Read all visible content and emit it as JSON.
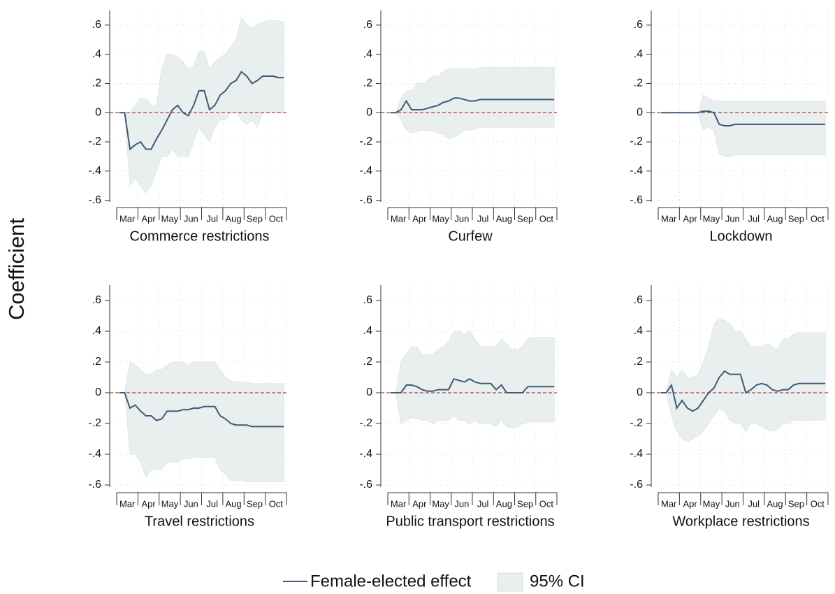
{
  "ylabel": "Coefficient",
  "chart_data": [
    {
      "type": "line",
      "title": "Commerce restrictions",
      "categories": [
        null,
        null,
        "Mar",
        null,
        null,
        null,
        "Apr",
        null,
        null,
        null,
        "May",
        null,
        null,
        null,
        "Jun",
        null,
        null,
        null,
        "Jul",
        null,
        null,
        null,
        "Aug",
        null,
        null,
        null,
        "Sep",
        null,
        null,
        null,
        "Oct",
        null
      ],
      "series": [
        {
          "name": "Female-elected effect",
          "color": "#3e5a78",
          "values": [
            0,
            0,
            -0.25,
            -0.22,
            -0.2,
            -0.25,
            -0.25,
            -0.18,
            -0.12,
            -0.05,
            0.02,
            0.05,
            0.0,
            -0.02,
            0.05,
            0.15,
            0.15,
            0.02,
            0.05,
            0.12,
            0.15,
            0.2,
            0.22,
            0.28,
            0.25,
            0.2,
            0.22,
            0.25,
            0.25,
            0.25,
            0.24,
            0.24
          ]
        },
        {
          "name": "95% CI",
          "color": "#e9eeee",
          "upper": [
            0,
            0,
            0,
            0.05,
            0.1,
            0.1,
            0.05,
            0.05,
            0.3,
            0.4,
            0.4,
            0.38,
            0.35,
            0.3,
            0.32,
            0.42,
            0.42,
            0.3,
            0.35,
            0.38,
            0.4,
            0.45,
            0.5,
            0.65,
            0.6,
            0.58,
            0.6,
            0.62,
            0.63,
            0.63,
            0.63,
            0.62
          ],
          "lower": [
            0,
            0,
            -0.5,
            -0.45,
            -0.5,
            -0.55,
            -0.5,
            -0.4,
            -0.3,
            -0.3,
            -0.25,
            -0.3,
            -0.3,
            -0.3,
            -0.2,
            -0.1,
            -0.15,
            -0.2,
            -0.1,
            -0.05,
            -0.05,
            0.0,
            0.0,
            -0.05,
            -0.08,
            -0.05,
            -0.1,
            0.0,
            0.0,
            0.0,
            0.0,
            0.0
          ]
        }
      ],
      "ylim": [
        -0.65,
        0.7
      ],
      "yticks": [
        {
          "value": 0.6,
          "label": ".6"
        },
        {
          "value": 0.4,
          "label": ".4"
        },
        {
          "value": 0.2,
          "label": ".2"
        },
        0,
        {
          "value": -0.2,
          "label": "-.2"
        },
        {
          "value": -0.4,
          "label": "-.4"
        },
        {
          "value": -0.6,
          "label": "-.6"
        }
      ],
      "grid": true
    },
    {
      "type": "line",
      "title": "Curfew",
      "categories": [
        null,
        null,
        "Mar",
        null,
        null,
        null,
        "Apr",
        null,
        null,
        null,
        "May",
        null,
        null,
        null,
        "Jun",
        null,
        null,
        null,
        "Jul",
        null,
        null,
        null,
        "Aug",
        null,
        null,
        null,
        "Sep",
        null,
        null,
        null,
        "Oct",
        null
      ],
      "series": [
        {
          "name": "Female-elected effect",
          "color": "#3e5a78",
          "values": [
            0,
            0,
            0.02,
            0.08,
            0.02,
            0.02,
            0.02,
            0.03,
            0.04,
            0.05,
            0.07,
            0.08,
            0.1,
            0.1,
            0.09,
            0.08,
            0.08,
            0.09,
            0.09,
            0.09,
            0.09,
            0.09,
            0.09,
            0.09,
            0.09,
            0.09,
            0.09,
            0.09,
            0.09,
            0.09,
            0.09,
            0.09
          ]
        },
        {
          "name": "95% CI",
          "color": "#e9eeee",
          "upper": [
            0,
            0,
            0.1,
            0.15,
            0.15,
            0.2,
            0.2,
            0.22,
            0.25,
            0.25,
            0.28,
            0.3,
            0.3,
            0.3,
            0.3,
            0.3,
            0.3,
            0.31,
            0.31,
            0.31,
            0.31,
            0.31,
            0.31,
            0.31,
            0.31,
            0.31,
            0.31,
            0.31,
            0.31,
            0.31,
            0.31,
            0.31
          ],
          "lower": [
            0,
            0,
            -0.05,
            -0.12,
            -0.14,
            -0.13,
            -0.12,
            -0.12,
            -0.13,
            -0.14,
            -0.15,
            -0.18,
            -0.17,
            -0.15,
            -0.12,
            -0.12,
            -0.11,
            -0.1,
            -0.1,
            -0.1,
            -0.1,
            -0.1,
            -0.1,
            -0.1,
            -0.1,
            -0.1,
            -0.1,
            -0.1,
            -0.1,
            -0.1,
            -0.1,
            -0.1
          ]
        }
      ],
      "ylim": [
        -0.65,
        0.7
      ],
      "yticks": [
        {
          "value": 0.6,
          "label": ".6"
        },
        {
          "value": 0.4,
          "label": ".4"
        },
        {
          "value": 0.2,
          "label": ".2"
        },
        0,
        {
          "value": -0.2,
          "label": "-.2"
        },
        {
          "value": -0.4,
          "label": "-.4"
        },
        {
          "value": -0.6,
          "label": "-.6"
        }
      ],
      "grid": true
    },
    {
      "type": "line",
      "title": "Lockdown",
      "categories": [
        null,
        null,
        "Mar",
        null,
        null,
        null,
        "Apr",
        null,
        null,
        null,
        "May",
        null,
        null,
        null,
        "Jun",
        null,
        null,
        null,
        "Jul",
        null,
        null,
        null,
        "Aug",
        null,
        null,
        null,
        "Sep",
        null,
        null,
        null,
        "Oct",
        null
      ],
      "series": [
        {
          "name": "Female-elected effect",
          "color": "#3e5a78",
          "values": [
            0,
            0,
            0,
            0,
            0,
            0,
            0,
            0,
            0.01,
            0.01,
            0.0,
            -0.08,
            -0.09,
            -0.09,
            -0.08,
            -0.08,
            -0.08,
            -0.08,
            -0.08,
            -0.08,
            -0.08,
            -0.08,
            -0.08,
            -0.08,
            -0.08,
            -0.08,
            -0.08,
            -0.08,
            -0.08,
            -0.08,
            -0.08,
            -0.08
          ]
        },
        {
          "name": "95% CI",
          "color": "#e9eeee",
          "upper": [
            0,
            0,
            0,
            0,
            0,
            0,
            0,
            0,
            0.12,
            0.1,
            0.08,
            0.08,
            0.08,
            0.08,
            0.08,
            0.08,
            0.08,
            0.08,
            0.08,
            0.08,
            0.08,
            0.08,
            0.08,
            0.08,
            0.08,
            0.08,
            0.08,
            0.08,
            0.08,
            0.08,
            0.08,
            0.08
          ],
          "lower": [
            0,
            0,
            0,
            0,
            0,
            0,
            0,
            0,
            -0.12,
            -0.1,
            -0.12,
            -0.28,
            -0.3,
            -0.3,
            -0.29,
            -0.29,
            -0.29,
            -0.29,
            -0.29,
            -0.29,
            -0.29,
            -0.29,
            -0.29,
            -0.29,
            -0.29,
            -0.29,
            -0.29,
            -0.29,
            -0.29,
            -0.29,
            -0.29,
            -0.29
          ]
        }
      ],
      "ylim": [
        -0.65,
        0.7
      ],
      "yticks": [
        {
          "value": 0.6,
          "label": ".6"
        },
        {
          "value": 0.4,
          "label": ".4"
        },
        {
          "value": 0.2,
          "label": ".2"
        },
        0,
        {
          "value": -0.2,
          "label": "-.2"
        },
        {
          "value": -0.4,
          "label": "-.4"
        },
        {
          "value": -0.6,
          "label": "-.6"
        }
      ],
      "grid": true
    },
    {
      "type": "line",
      "title": "Travel restrictions",
      "categories": [
        null,
        null,
        "Mar",
        null,
        null,
        null,
        "Apr",
        null,
        null,
        null,
        "May",
        null,
        null,
        null,
        "Jun",
        null,
        null,
        null,
        "Jul",
        null,
        null,
        null,
        "Aug",
        null,
        null,
        null,
        "Sep",
        null,
        null,
        null,
        "Oct",
        null
      ],
      "series": [
        {
          "name": "Female-elected effect",
          "color": "#3e5a78",
          "values": [
            0,
            0,
            -0.1,
            -0.08,
            -0.12,
            -0.15,
            -0.15,
            -0.18,
            -0.17,
            -0.12,
            -0.12,
            -0.12,
            -0.11,
            -0.11,
            -0.1,
            -0.1,
            -0.09,
            -0.09,
            -0.09,
            -0.15,
            -0.17,
            -0.2,
            -0.21,
            -0.21,
            -0.21,
            -0.22,
            -0.22,
            -0.22,
            -0.22,
            -0.22,
            -0.22,
            -0.22
          ]
        },
        {
          "name": "95% CI",
          "color": "#e9eeee",
          "upper": [
            0,
            0,
            0.2,
            0.18,
            0.15,
            0.12,
            0.12,
            0.15,
            0.15,
            0.18,
            0.2,
            0.2,
            0.2,
            0.18,
            0.2,
            0.2,
            0.2,
            0.2,
            0.2,
            0.15,
            0.1,
            0.08,
            0.07,
            0.07,
            0.07,
            0.06,
            0.06,
            0.06,
            0.06,
            0.06,
            0.06,
            0.06
          ],
          "lower": [
            0,
            0,
            -0.4,
            -0.4,
            -0.45,
            -0.55,
            -0.5,
            -0.5,
            -0.5,
            -0.45,
            -0.45,
            -0.45,
            -0.43,
            -0.43,
            -0.42,
            -0.42,
            -0.42,
            -0.42,
            -0.42,
            -0.5,
            -0.53,
            -0.57,
            -0.57,
            -0.57,
            -0.58,
            -0.58,
            -0.58,
            -0.58,
            -0.58,
            -0.58,
            -0.58,
            -0.58
          ]
        }
      ],
      "ylim": [
        -0.65,
        0.7
      ],
      "yticks": [
        {
          "value": 0.6,
          "label": ".6"
        },
        {
          "value": 0.4,
          "label": ".4"
        },
        {
          "value": 0.2,
          "label": ".2"
        },
        0,
        {
          "value": -0.2,
          "label": "-.2"
        },
        {
          "value": -0.4,
          "label": "-.4"
        },
        {
          "value": -0.6,
          "label": "-.6"
        }
      ],
      "grid": true
    },
    {
      "type": "line",
      "title": "Public transport restrictions",
      "categories": [
        null,
        null,
        "Mar",
        null,
        null,
        null,
        "Apr",
        null,
        null,
        null,
        "May",
        null,
        null,
        null,
        "Jun",
        null,
        null,
        null,
        "Jul",
        null,
        null,
        null,
        "Aug",
        null,
        null,
        null,
        "Sep",
        null,
        null,
        null,
        "Oct",
        null
      ],
      "series": [
        {
          "name": "Female-elected effect",
          "color": "#3e5a78",
          "values": [
            0,
            0,
            0.0,
            0.05,
            0.05,
            0.04,
            0.02,
            0.01,
            0.01,
            0.02,
            0.02,
            0.02,
            0.09,
            0.08,
            0.07,
            0.09,
            0.07,
            0.06,
            0.06,
            0.06,
            0.02,
            0.05,
            0.0,
            0.0,
            0.0,
            0.0,
            0.04,
            0.04,
            0.04,
            0.04,
            0.04,
            0.04
          ]
        },
        {
          "name": "95% CI",
          "color": "#e9eeee",
          "upper": [
            0,
            0,
            0.2,
            0.25,
            0.3,
            0.3,
            0.25,
            0.25,
            0.25,
            0.28,
            0.3,
            0.33,
            0.4,
            0.4,
            0.38,
            0.4,
            0.35,
            0.3,
            0.3,
            0.3,
            0.3,
            0.35,
            0.32,
            0.28,
            0.28,
            0.3,
            0.35,
            0.36,
            0.36,
            0.36,
            0.36,
            0.36
          ],
          "lower": [
            0,
            0,
            -0.2,
            -0.18,
            -0.16,
            -0.17,
            -0.18,
            -0.18,
            -0.2,
            -0.18,
            -0.18,
            -0.18,
            -0.15,
            -0.18,
            -0.18,
            -0.2,
            -0.18,
            -0.2,
            -0.2,
            -0.2,
            -0.22,
            -0.18,
            -0.22,
            -0.23,
            -0.22,
            -0.2,
            -0.19,
            -0.19,
            -0.19,
            -0.19,
            -0.19,
            -0.19
          ]
        }
      ],
      "ylim": [
        -0.65,
        0.7
      ],
      "yticks": [
        {
          "value": 0.6,
          "label": ".6"
        },
        {
          "value": 0.4,
          "label": ".4"
        },
        {
          "value": 0.2,
          "label": ".2"
        },
        0,
        {
          "value": -0.2,
          "label": "-.2"
        },
        {
          "value": -0.4,
          "label": "-.4"
        },
        {
          "value": -0.6,
          "label": "-.6"
        }
      ],
      "grid": true
    },
    {
      "type": "line",
      "title": "Workplace restrictions",
      "categories": [
        null,
        null,
        "Mar",
        null,
        null,
        null,
        "Apr",
        null,
        null,
        null,
        "May",
        null,
        null,
        null,
        "Jun",
        null,
        null,
        null,
        "Jul",
        null,
        null,
        null,
        "Aug",
        null,
        null,
        null,
        "Sep",
        null,
        null,
        null,
        "Oct",
        null
      ],
      "series": [
        {
          "name": "Female-elected effect",
          "color": "#3e5a78",
          "values": [
            0,
            0,
            0.05,
            -0.1,
            -0.05,
            -0.1,
            -0.12,
            -0.1,
            -0.05,
            0.0,
            0.03,
            0.1,
            0.14,
            0.12,
            0.12,
            0.12,
            0.0,
            0.02,
            0.05,
            0.06,
            0.05,
            0.02,
            0.01,
            0.02,
            0.02,
            0.05,
            0.06,
            0.06,
            0.06,
            0.06,
            0.06,
            0.06
          ]
        },
        {
          "name": "95% CI",
          "color": "#e9eeee",
          "upper": [
            0,
            0,
            0.15,
            0.1,
            0.15,
            0.1,
            0.1,
            0.12,
            0.2,
            0.3,
            0.45,
            0.48,
            0.47,
            0.45,
            0.4,
            0.4,
            0.35,
            0.3,
            0.3,
            0.3,
            0.32,
            0.3,
            0.28,
            0.35,
            0.35,
            0.38,
            0.39,
            0.39,
            0.39,
            0.39,
            0.39,
            0.39
          ],
          "lower": [
            0,
            0,
            -0.15,
            -0.25,
            -0.3,
            -0.32,
            -0.3,
            -0.28,
            -0.25,
            -0.2,
            -0.15,
            -0.1,
            -0.12,
            -0.18,
            -0.2,
            -0.2,
            -0.25,
            -0.2,
            -0.2,
            -0.22,
            -0.24,
            -0.25,
            -0.24,
            -0.2,
            -0.2,
            -0.18,
            -0.18,
            -0.18,
            -0.18,
            -0.18,
            -0.18,
            -0.18
          ]
        }
      ],
      "ylim": [
        -0.65,
        0.7
      ],
      "yticks": [
        {
          "value": 0.6,
          "label": ".6"
        },
        {
          "value": 0.4,
          "label": ".4"
        },
        {
          "value": 0.2,
          "label": ".2"
        },
        0,
        {
          "value": -0.2,
          "label": "-.2"
        },
        {
          "value": -0.4,
          "label": "-.4"
        },
        {
          "value": -0.6,
          "label": "-.6"
        }
      ],
      "grid": true
    }
  ]
}
